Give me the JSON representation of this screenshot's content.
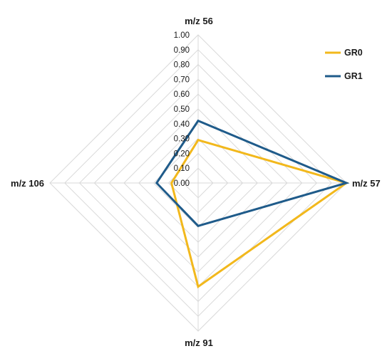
{
  "chart_data": {
    "type": "radar",
    "title": "",
    "axes": [
      "m/z 56",
      "m/z 57",
      "m/z 91",
      "m/z 106"
    ],
    "range": [
      0,
      1
    ],
    "ticks": [
      "0.00",
      "0.10",
      "0.20",
      "0.30",
      "0.40",
      "0.50",
      "0.60",
      "0.70",
      "0.80",
      "0.90",
      "1.00"
    ],
    "grid": true,
    "legend": "top-right",
    "series": [
      {
        "name": "GR0",
        "color": "#f2b81c",
        "values": [
          0.29,
          1.0,
          0.7,
          0.18
        ]
      },
      {
        "name": "GR1",
        "color": "#1f5b8a",
        "values": [
          0.42,
          1.0,
          0.29,
          0.28
        ]
      }
    ]
  }
}
